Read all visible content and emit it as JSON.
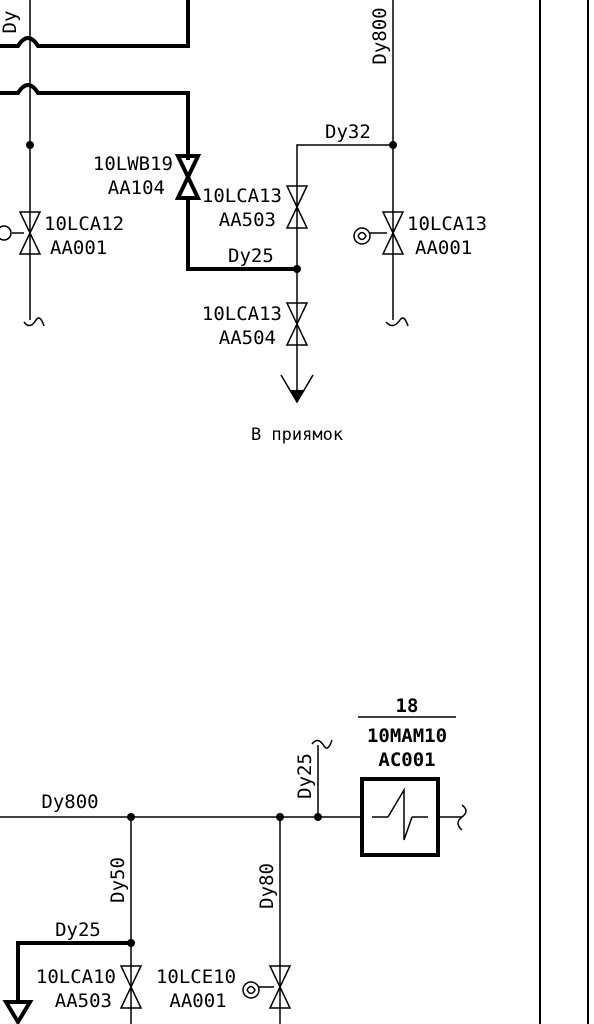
{
  "labels": {
    "dy_top_left": "Dy",
    "dy800_top": "Dy800",
    "dy32": "Dy32",
    "v_lwb19": "10LWB19",
    "v_lwb19_sub": "AA104",
    "v_lca13_503": "10LCA13",
    "v_lca13_503_sub": "AA503",
    "v_lca12": "10LCA12",
    "v_lca12_sub": "AA001",
    "v_lca13_001": "10LCA13",
    "v_lca13_001_sub": "AA001",
    "dy25_mid": "Dy25",
    "v_lca13_504": "10LCA13",
    "v_lca13_504_sub": "AA504",
    "drain": "В приямок",
    "eq_num": "18",
    "eq_code": "10MAM10",
    "eq_code_sub": "AC001",
    "dy25_vert": "Dy25",
    "dy800_bottom": "Dy800",
    "dy50": "Dy50",
    "dy80": "Dy80",
    "dy25_bottom": "Dy25",
    "v_lca10": "10LCA10",
    "v_lca10_sub": "AA503",
    "v_lce10": "10LCE10",
    "v_lce10_sub": "AA001"
  }
}
